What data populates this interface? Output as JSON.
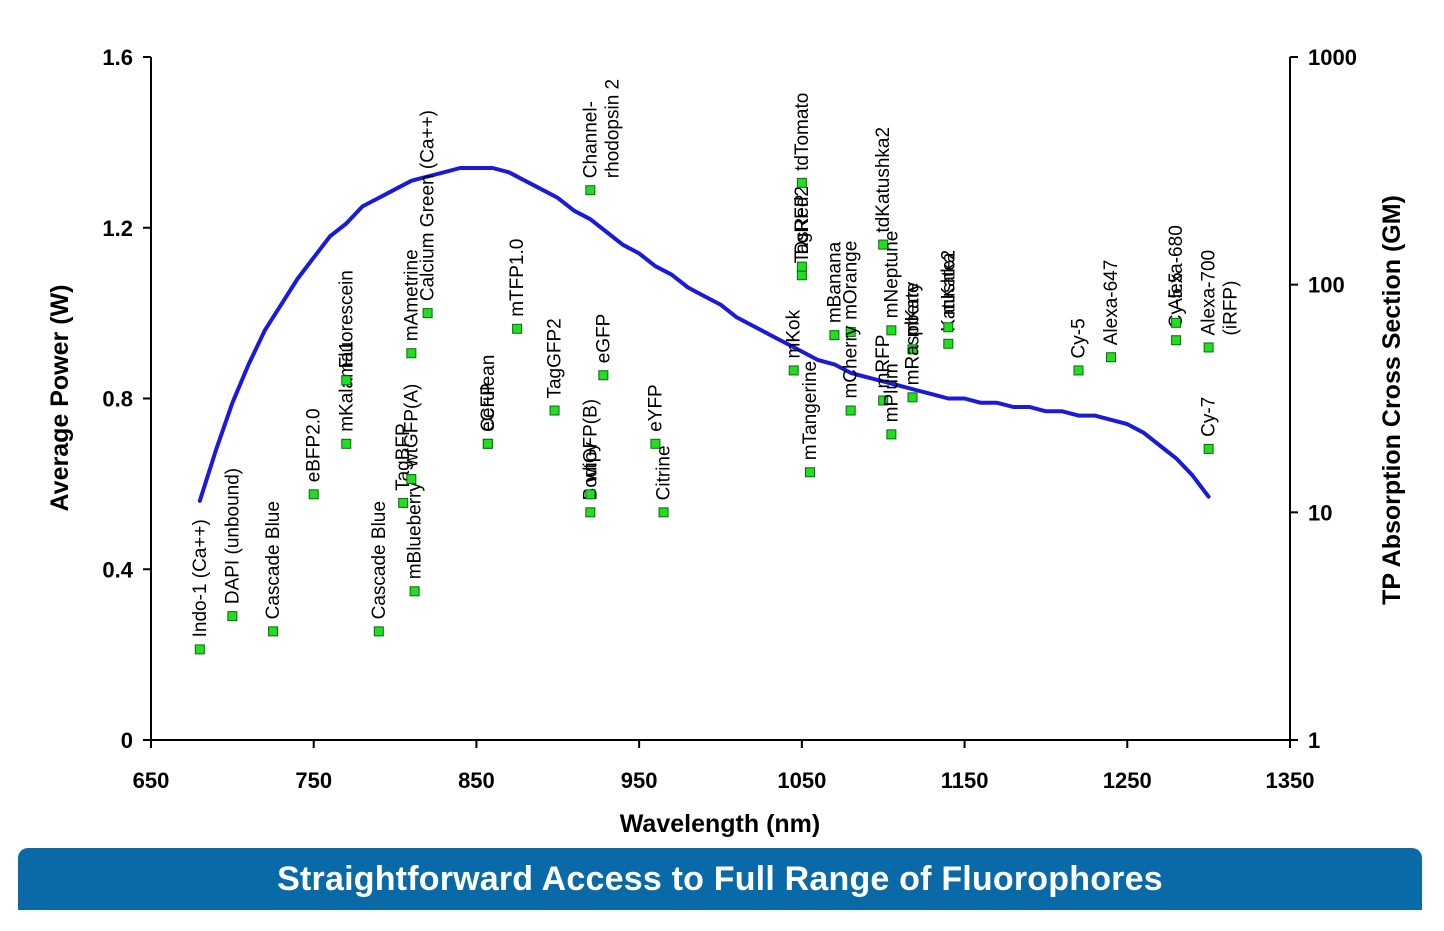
{
  "banner": {
    "text": "Straightforward Access to Full Range of Fluorophores"
  },
  "chart_data": {
    "type": "scatter",
    "xlabel": "Wavelength (nm)",
    "ylabel": "Average Power (W)",
    "y2label": "TP Absorption Cross Section (GM)",
    "xlim": [
      650,
      1350
    ],
    "ylim": [
      0,
      1.6
    ],
    "y2lim": [
      1,
      1000
    ],
    "y2scale": "log",
    "x_ticks": [
      650,
      750,
      850,
      950,
      1050,
      1150,
      1250,
      1350
    ],
    "y_ticks": [
      "0",
      "0.4",
      "0.8",
      "1.2",
      "1.6"
    ],
    "y2_ticks": [
      "1",
      "10",
      "100",
      "1000"
    ],
    "colors": {
      "curve": "#1a1adb",
      "marker_fill": "#22dd22",
      "marker_stroke": "#0a6a0a",
      "banner": "#0a6aa8"
    },
    "series": [
      {
        "type": "line",
        "axis": "left",
        "x": [
          680,
          690,
          700,
          710,
          720,
          730,
          740,
          750,
          760,
          770,
          780,
          790,
          800,
          810,
          820,
          830,
          840,
          850,
          860,
          870,
          880,
          890,
          900,
          910,
          920,
          930,
          940,
          950,
          960,
          970,
          980,
          990,
          1000,
          1010,
          1020,
          1030,
          1040,
          1050,
          1060,
          1070,
          1080,
          1090,
          1100,
          1110,
          1120,
          1130,
          1140,
          1150,
          1160,
          1170,
          1180,
          1190,
          1200,
          1210,
          1220,
          1230,
          1240,
          1250,
          1260,
          1270,
          1280,
          1290,
          1300
        ],
        "y": [
          0.56,
          0.68,
          0.79,
          0.88,
          0.96,
          1.02,
          1.08,
          1.13,
          1.18,
          1.21,
          1.25,
          1.27,
          1.29,
          1.31,
          1.32,
          1.33,
          1.34,
          1.34,
          1.34,
          1.33,
          1.31,
          1.29,
          1.27,
          1.24,
          1.22,
          1.19,
          1.16,
          1.14,
          1.11,
          1.09,
          1.06,
          1.04,
          1.02,
          0.99,
          0.97,
          0.95,
          0.93,
          0.91,
          0.89,
          0.88,
          0.86,
          0.85,
          0.84,
          0.83,
          0.82,
          0.81,
          0.8,
          0.8,
          0.79,
          0.79,
          0.78,
          0.78,
          0.77,
          0.77,
          0.76,
          0.76,
          0.75,
          0.74,
          0.72,
          0.69,
          0.66,
          0.62,
          0.57
        ]
      },
      {
        "type": "scatter",
        "axis": "right",
        "points": [
          {
            "label": "Indo-1 (Ca++)",
            "x": 680,
            "y": 2.5
          },
          {
            "label": "DAPI (unbound)",
            "x": 700,
            "y": 3.5
          },
          {
            "label": "Cascade Blue",
            "x": 725,
            "y": 3.0
          },
          {
            "label": "eBFP2.0",
            "x": 750,
            "y": 12.0
          },
          {
            "label": "mKalama1",
            "x": 770,
            "y": 20.0
          },
          {
            "label": "Fluorescein",
            "x": 770,
            "y": 38.0
          },
          {
            "label": "Cascade Blue",
            "x": 790,
            "y": 3.0
          },
          {
            "label": "TagBFP",
            "x": 805,
            "y": 11.0
          },
          {
            "label": "mBlueberry",
            "x": 812,
            "y": 4.5
          },
          {
            "label": "wtGFP(A)",
            "x": 810,
            "y": 14.0
          },
          {
            "label": "mAmetrine",
            "x": 810,
            "y": 50.0
          },
          {
            "label": "Calcium Green (Ca++)",
            "x": 820,
            "y": 75.0
          },
          {
            "label": "Cerulean",
            "x": 857,
            "y": 20.0
          },
          {
            "label": "eCFP",
            "x": 857,
            "y": 20.0
          },
          {
            "label": "mTFP1.0",
            "x": 875,
            "y": 64.0
          },
          {
            "label": "TagGFP2",
            "x": 898,
            "y": 28.0
          },
          {
            "label": "Channel-\nrhodopsin 2",
            "x": 920,
            "y": 260.0
          },
          {
            "label": "Bodipy",
            "x": 920,
            "y": 10.0
          },
          {
            "label": "wtGFP(B)",
            "x": 920,
            "y": 12.0
          },
          {
            "label": "eGFP",
            "x": 928,
            "y": 40.0
          },
          {
            "label": "eYFP",
            "x": 960,
            "y": 20.0
          },
          {
            "label": "Citrine",
            "x": 965,
            "y": 10.0
          },
          {
            "label": "mKok",
            "x": 1045,
            "y": 42.0
          },
          {
            "label": "TagRFP",
            "x": 1050,
            "y": 110.0
          },
          {
            "label": "DsRed2",
            "x": 1050,
            "y": 120.0
          },
          {
            "label": "tdTomato",
            "x": 1050,
            "y": 280.0
          },
          {
            "label": "mTangerine",
            "x": 1055,
            "y": 15.0
          },
          {
            "label": "mBanana",
            "x": 1070,
            "y": 60.0
          },
          {
            "label": "mOrange",
            "x": 1080,
            "y": 62.0
          },
          {
            "label": "mCherry",
            "x": 1080,
            "y": 28.0
          },
          {
            "label": "tdKatushka2",
            "x": 1100,
            "y": 150.0
          },
          {
            "label": "mRFP",
            "x": 1100,
            "y": 31.0
          },
          {
            "label": "mPlum",
            "x": 1105,
            "y": 22.0
          },
          {
            "label": "mNeptune",
            "x": 1105,
            "y": 63.0
          },
          {
            "label": "mKate",
            "x": 1118,
            "y": 52.0
          },
          {
            "label": "mRaspberry",
            "x": 1118,
            "y": 32.0
          },
          {
            "label": "Katushka",
            "x": 1140,
            "y": 55.0
          },
          {
            "label": "mKate2",
            "x": 1140,
            "y": 65.0
          },
          {
            "label": "Cy-5",
            "x": 1220,
            "y": 42.0
          },
          {
            "label": "Alexa-647",
            "x": 1240,
            "y": 48.0
          },
          {
            "label": "Cy-5.5",
            "x": 1280,
            "y": 57.0
          },
          {
            "label": "Alexa-680",
            "x": 1280,
            "y": 68.0
          },
          {
            "label": "Cy-7",
            "x": 1300,
            "y": 19.0
          },
          {
            "label": "Alexa-700\n(iRFP)",
            "x": 1300,
            "y": 53.0
          }
        ]
      }
    ]
  }
}
